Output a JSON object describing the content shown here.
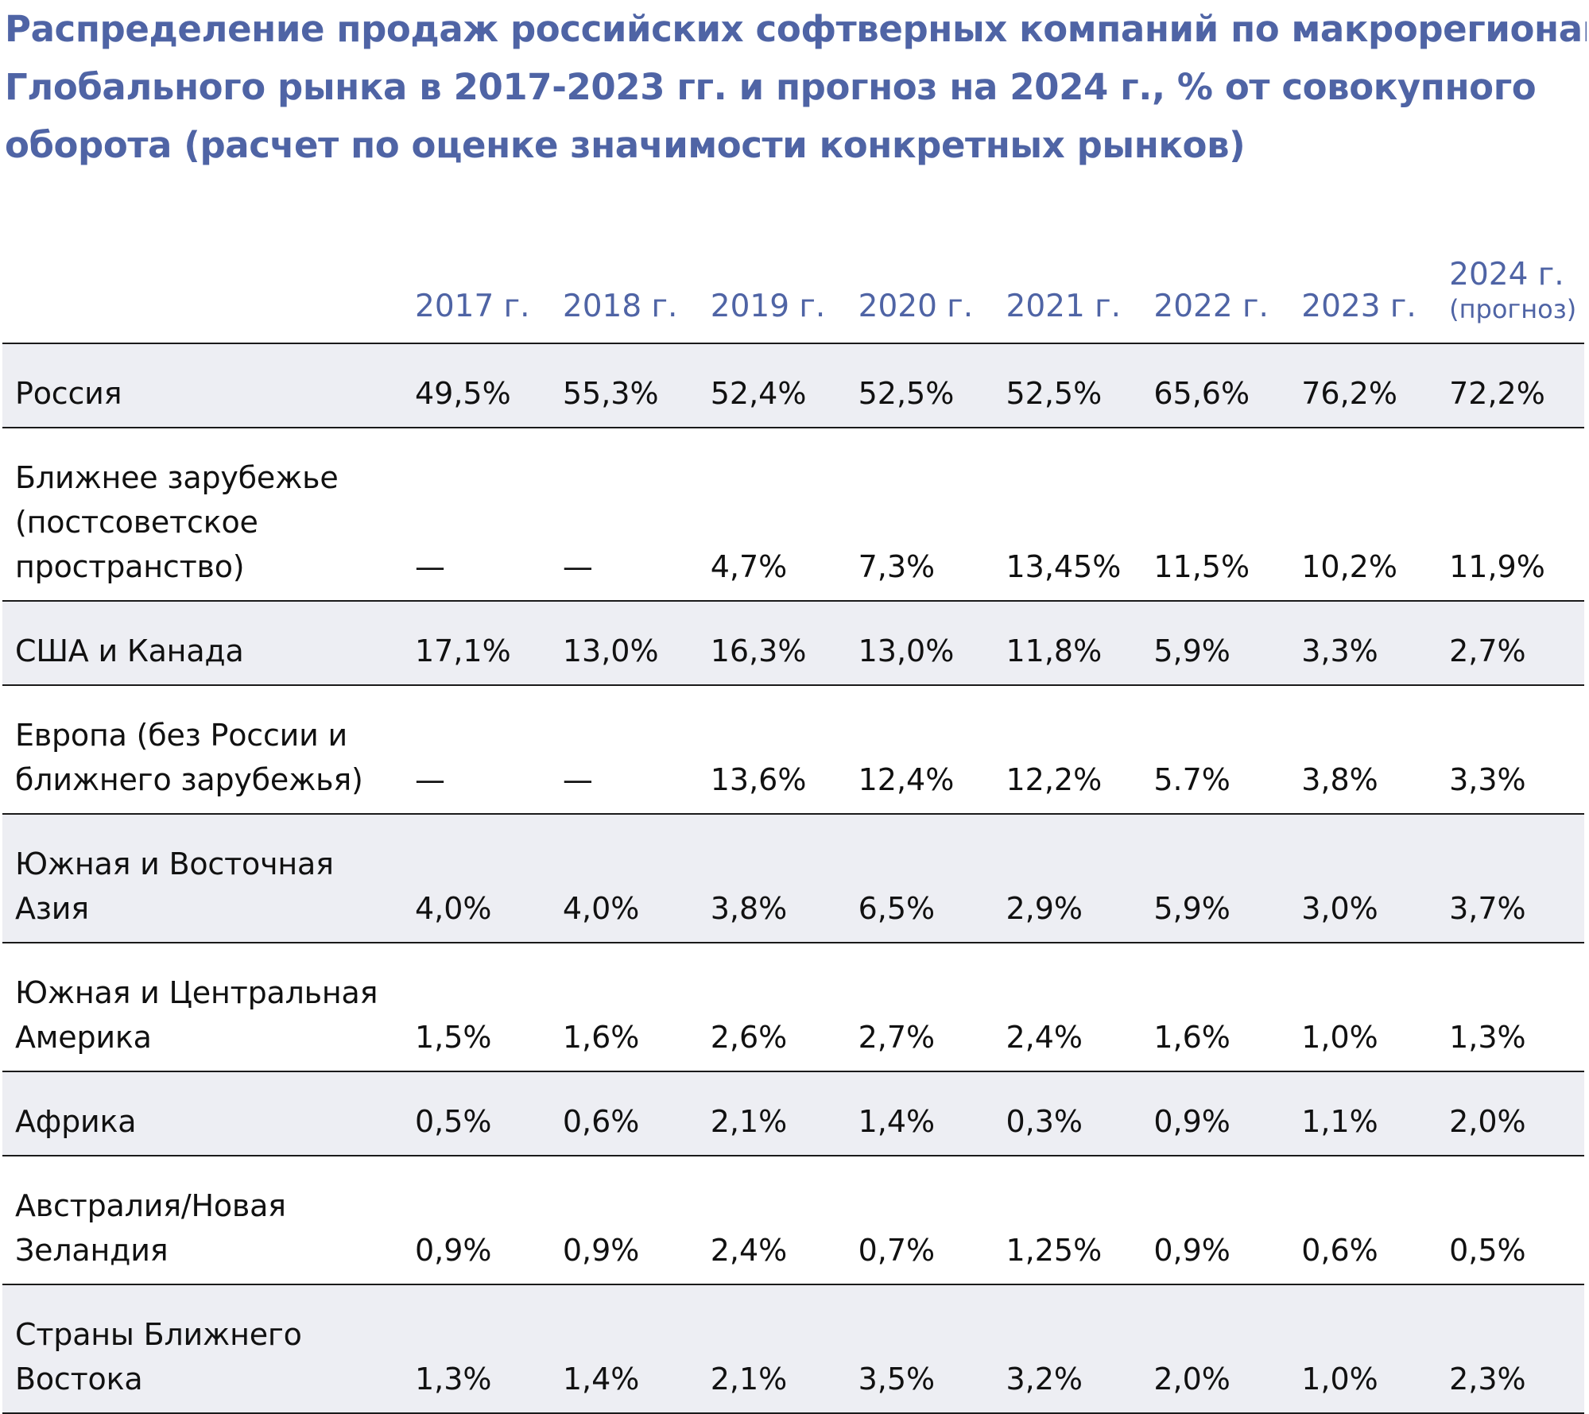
{
  "chart_data": {
    "type": "table",
    "title_lines": [
      "Распределение продаж российских софтверных компаний по макрорегионам",
      "Глобального рынка в 2017-2023 гг. и прогноз на 2024 г., % от совокупного",
      "оборота (расчет по оценке значимости конкретных рынков)"
    ],
    "columns": [
      {
        "label": "2017 г.",
        "note": ""
      },
      {
        "label": "2018 г.",
        "note": ""
      },
      {
        "label": "2019 г.",
        "note": ""
      },
      {
        "label": "2020 г.",
        "note": ""
      },
      {
        "label": "2021 г.",
        "note": ""
      },
      {
        "label": "2022 г.",
        "note": ""
      },
      {
        "label": "2023 г.",
        "note": ""
      },
      {
        "label": "2024 г.",
        "note": "(прогноз)"
      }
    ],
    "rows": [
      {
        "region": "Россия",
        "lines": 1,
        "values": [
          "49,5%",
          "55,3%",
          "52,4%",
          "52,5%",
          "52,5%",
          "65,6%",
          "76,2%",
          "72,2%"
        ]
      },
      {
        "region": "Ближнее зарубежье (постсоветское пространство)",
        "lines": 3,
        "values": [
          "—",
          "—",
          "4,7%",
          "7,3%",
          "13,45%",
          "11,5%",
          "10,2%",
          "11,9%"
        ]
      },
      {
        "region": "США и Канада",
        "lines": 1,
        "values": [
          "17,1%",
          "13,0%",
          "16,3%",
          "13,0%",
          "11,8%",
          "5,9%",
          "3,3%",
          "2,7%"
        ]
      },
      {
        "region": "Европа (без России и ближнего зарубежья)",
        "lines": 2,
        "values": [
          "—",
          "—",
          "13,6%",
          "12,4%",
          "12,2%",
          "5.7%",
          "3,8%",
          "3,3%"
        ]
      },
      {
        "region": "Южная и Восточная Азия",
        "lines": 2,
        "values": [
          "4,0%",
          "4,0%",
          "3,8%",
          "6,5%",
          "2,9%",
          "5,9%",
          "3,0%",
          "3,7%"
        ]
      },
      {
        "region": "Южная и Центральная Америка",
        "lines": 2,
        "values": [
          "1,5%",
          "1,6%",
          "2,6%",
          "2,7%",
          "2,4%",
          "1,6%",
          "1,0%",
          "1,3%"
        ]
      },
      {
        "region": "Африка",
        "lines": 1,
        "values": [
          "0,5%",
          "0,6%",
          "2,1%",
          "1,4%",
          "0,3%",
          "0,9%",
          "1,1%",
          "2,0%"
        ]
      },
      {
        "region": "Австралия/Новая Зеландия",
        "lines": 2,
        "values": [
          "0,9%",
          "0,9%",
          "2,4%",
          "0,7%",
          "1,25%",
          "0,9%",
          "0,6%",
          "0,5%"
        ]
      },
      {
        "region": "Страны Ближнего Востока",
        "lines": 2,
        "values": [
          "1,3%",
          "1,4%",
          "2,1%",
          "3,5%",
          "3,2%",
          "2,0%",
          "1,0%",
          "2,3%"
        ]
      }
    ]
  },
  "colors": {
    "heading": "#4f64a5",
    "text": "#111111",
    "row_shade": "#edeef3",
    "rule": "#1a1a1a"
  }
}
